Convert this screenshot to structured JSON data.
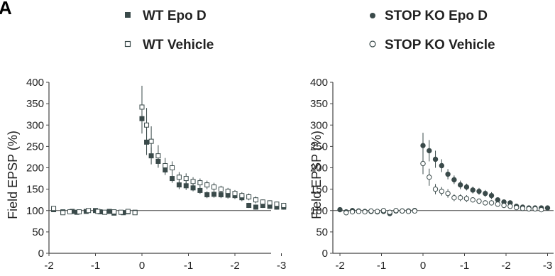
{
  "panel_label": "A",
  "colors": {
    "filled": "#3a4a4a",
    "open_stroke": "#3a4a4a",
    "axis": "#444444",
    "baseline": "#444444"
  },
  "chart_data": [
    {
      "type": "scatter",
      "title": "",
      "xlabel": "",
      "ylabel": "Field EPSP (%)",
      "xlim": [
        -2,
        -3
      ],
      "ylim": [
        0,
        400
      ],
      "x_ticks": [
        "-2",
        "-1",
        "0",
        "-1",
        "-2",
        "-3"
      ],
      "y_ticks": [
        "0",
        "50",
        "100",
        "150",
        "200",
        "250",
        "300",
        "350",
        "400"
      ],
      "baseline": 100,
      "grid": false,
      "legend": "top",
      "series": [
        {
          "name": "WT Epo D",
          "marker": "filled-square",
          "x": [
            -1.9,
            -1.7,
            -1.5,
            -1.4,
            -1.2,
            -1.0,
            -0.9,
            -0.7,
            -0.6,
            -0.4,
            -0.3,
            -0.15,
            0.0,
            0.1,
            0.2,
            0.35,
            0.5,
            0.65,
            0.8,
            0.95,
            1.1,
            1.25,
            1.4,
            1.55,
            1.7,
            1.85,
            2.0,
            2.15,
            2.3,
            2.45,
            2.6,
            2.75,
            2.9,
            3.05
          ],
          "y": [
            102,
            97,
            98,
            96,
            98,
            100,
            97,
            98,
            94,
            95,
            97,
            96,
            315,
            260,
            228,
            215,
            195,
            175,
            160,
            158,
            153,
            147,
            137,
            138,
            137,
            136,
            135,
            130,
            112,
            108,
            112,
            110,
            108,
            108
          ],
          "error": [
            3,
            3,
            3,
            3,
            3,
            3,
            3,
            3,
            3,
            3,
            3,
            3,
            35,
            30,
            20,
            15,
            12,
            10,
            10,
            10,
            8,
            8,
            8,
            8,
            8,
            8,
            8,
            8,
            6,
            6,
            6,
            6,
            6,
            6
          ]
        },
        {
          "name": "WT Vehicle",
          "marker": "open-square",
          "x": [
            -1.9,
            -1.7,
            -1.55,
            -1.35,
            -1.15,
            -0.95,
            -0.8,
            -0.6,
            -0.45,
            -0.3,
            -0.15,
            0.0,
            0.1,
            0.2,
            0.35,
            0.5,
            0.65,
            0.8,
            0.95,
            1.1,
            1.25,
            1.4,
            1.55,
            1.7,
            1.85,
            2.0,
            2.15,
            2.3,
            2.45,
            2.6,
            2.75,
            2.9,
            3.05
          ],
          "y": [
            105,
            95,
            97,
            97,
            100,
            98,
            96,
            97,
            96,
            98,
            95,
            342,
            300,
            262,
            228,
            205,
            200,
            178,
            175,
            168,
            165,
            160,
            155,
            150,
            145,
            140,
            135,
            132,
            125,
            120,
            118,
            115,
            112
          ],
          "error": [
            3,
            3,
            3,
            3,
            3,
            3,
            3,
            3,
            3,
            3,
            3,
            50,
            40,
            35,
            25,
            18,
            15,
            12,
            12,
            10,
            10,
            10,
            10,
            8,
            8,
            8,
            8,
            8,
            8,
            6,
            6,
            6,
            6
          ]
        }
      ]
    },
    {
      "type": "scatter",
      "title": "",
      "xlabel": "",
      "ylabel": "Field EPSP (%)",
      "xlim": [
        -2,
        -3
      ],
      "ylim": [
        0,
        400
      ],
      "x_ticks": [
        "-2",
        "-1",
        "0",
        "-1",
        "-2",
        "-3"
      ],
      "y_ticks": [
        "0",
        "50",
        "100",
        "150",
        "200",
        "250",
        "300",
        "350",
        "400"
      ],
      "baseline": 100,
      "grid": false,
      "legend": "top",
      "series": [
        {
          "name": "STOP KO Epo D",
          "marker": "filled-circle",
          "x": [
            -2.0,
            -1.85,
            -1.7,
            -1.55,
            -1.4,
            -1.25,
            -1.1,
            -0.95,
            -0.8,
            -0.65,
            -0.5,
            -0.35,
            -0.2,
            0.0,
            0.15,
            0.3,
            0.45,
            0.6,
            0.75,
            0.9,
            1.05,
            1.2,
            1.35,
            1.5,
            1.65,
            1.8,
            1.95,
            2.1,
            2.25,
            2.4,
            2.55,
            2.7,
            2.85,
            3.0
          ],
          "y": [
            102,
            97,
            100,
            99,
            98,
            98,
            97,
            98,
            93,
            99,
            99,
            99,
            100,
            252,
            240,
            220,
            205,
            185,
            172,
            160,
            155,
            148,
            145,
            140,
            135,
            125,
            120,
            118,
            110,
            108,
            106,
            106,
            106,
            106
          ],
          "error": [
            3,
            3,
            3,
            3,
            3,
            3,
            3,
            3,
            3,
            3,
            3,
            3,
            3,
            30,
            25,
            20,
            15,
            12,
            10,
            10,
            8,
            8,
            8,
            8,
            8,
            6,
            6,
            6,
            5,
            5,
            5,
            5,
            5,
            5
          ]
        },
        {
          "name": "STOP KO Vehicle",
          "marker": "open-circle",
          "x": [
            -1.85,
            -1.7,
            -1.55,
            -1.4,
            -1.25,
            -1.1,
            -0.95,
            -0.8,
            -0.65,
            -0.5,
            -0.35,
            -0.2,
            0.0,
            0.15,
            0.3,
            0.45,
            0.6,
            0.75,
            0.9,
            1.05,
            1.2,
            1.35,
            1.5,
            1.65,
            1.8,
            1.95,
            2.1,
            2.25,
            2.4,
            2.55,
            2.7,
            2.85
          ],
          "y": [
            95,
            97,
            98,
            97,
            99,
            98,
            100,
            96,
            100,
            99,
            98,
            99,
            210,
            178,
            150,
            145,
            140,
            130,
            130,
            128,
            125,
            122,
            118,
            118,
            115,
            112,
            110,
            107,
            105,
            104,
            104,
            102
          ],
          "error": [
            3,
            3,
            3,
            3,
            3,
            3,
            3,
            3,
            3,
            3,
            3,
            3,
            25,
            20,
            12,
            10,
            10,
            8,
            8,
            8,
            6,
            6,
            6,
            6,
            6,
            5,
            5,
            5,
            5,
            5,
            5,
            5
          ]
        }
      ]
    }
  ]
}
